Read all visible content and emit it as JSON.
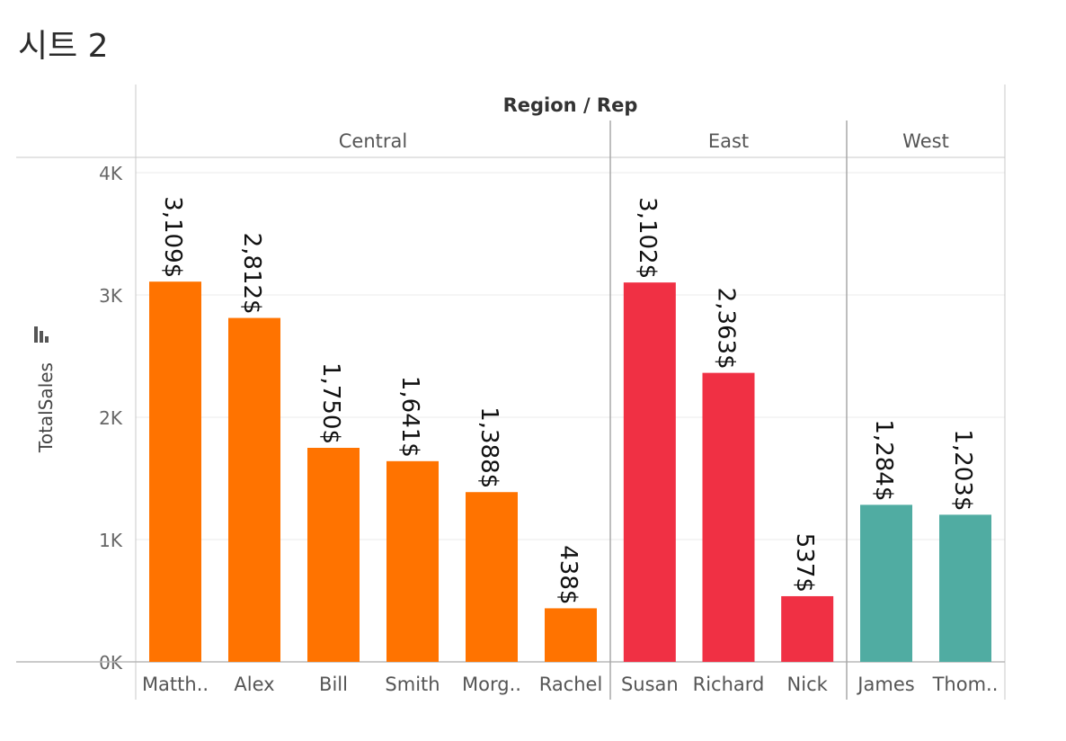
{
  "sheet": {
    "title": "시트 2"
  },
  "chart_data": {
    "type": "bar",
    "header": "Region / Rep",
    "ylabel": "TotalSales",
    "ylim": [
      0,
      4000
    ],
    "yticks": [
      {
        "value": 0,
        "label": "0K"
      },
      {
        "value": 1000,
        "label": "1K"
      },
      {
        "value": 2000,
        "label": "2K"
      },
      {
        "value": 3000,
        "label": "3K"
      },
      {
        "value": 4000,
        "label": "4K"
      }
    ],
    "grid": true,
    "groups": [
      {
        "name": "Central",
        "color": "#ff7300",
        "reps": [
          {
            "label": "Matth..",
            "value": 3109,
            "data_label": "3,109$"
          },
          {
            "label": "Alex",
            "value": 2812,
            "data_label": "2,812$"
          },
          {
            "label": "Bill",
            "value": 1750,
            "data_label": "1,750$"
          },
          {
            "label": "Smith",
            "value": 1641,
            "data_label": "1,641$"
          },
          {
            "label": "Morg..",
            "value": 1388,
            "data_label": "1,388$"
          },
          {
            "label": "Rachel",
            "value": 438,
            "data_label": "438$"
          }
        ]
      },
      {
        "name": "East",
        "color": "#f03044",
        "reps": [
          {
            "label": "Susan",
            "value": 3102,
            "data_label": "3,102$"
          },
          {
            "label": "Richard",
            "value": 2363,
            "data_label": "2,363$"
          },
          {
            "label": "Nick",
            "value": 537,
            "data_label": "537$"
          }
        ]
      },
      {
        "name": "West",
        "color": "#50aca2",
        "reps": [
          {
            "label": "James",
            "value": 1284,
            "data_label": "1,284$"
          },
          {
            "label": "Thom..",
            "value": 1203,
            "data_label": "1,203$"
          }
        ]
      }
    ]
  }
}
